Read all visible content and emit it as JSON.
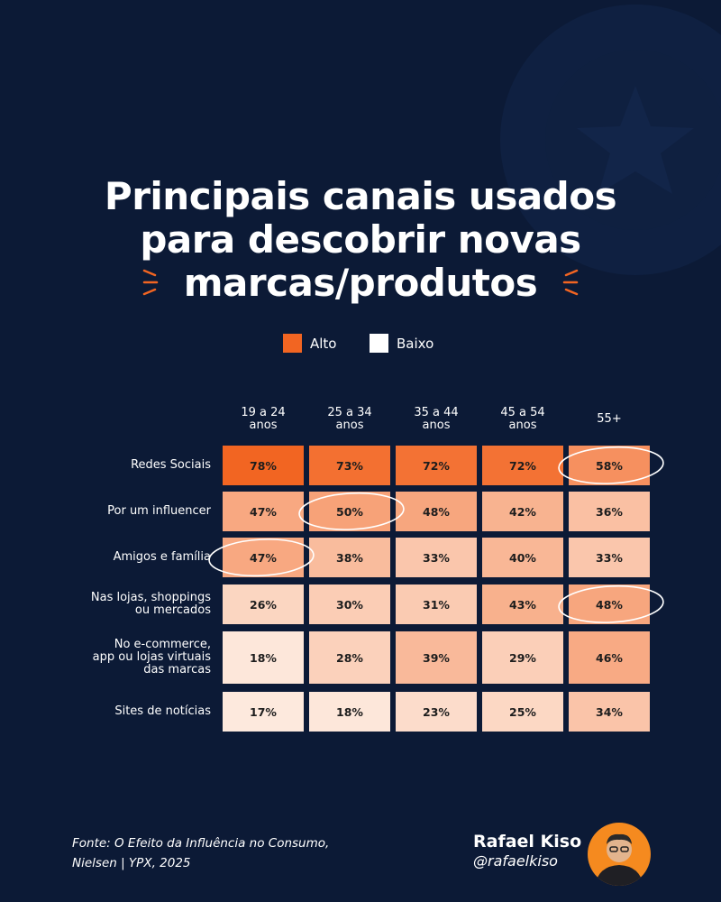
{
  "title": {
    "line1": "Principais canais usados",
    "line2": "para descobrir novas",
    "line3": "marcas/produtos"
  },
  "legend": {
    "high": {
      "label": "Alto",
      "color": "#f26522"
    },
    "low": {
      "label": "Baixo",
      "color": "#ffffff"
    }
  },
  "chart_data": {
    "type": "heatmap",
    "columns": [
      "19 a 24\nanos",
      "25 a 34\nanos",
      "35 a 44\nanos",
      "45 a 54\nanos",
      "55+"
    ],
    "rows": [
      "Redes Sociais",
      "Por um influencer",
      "Amigos e família",
      "Nas lojas, shoppings\nou mercados",
      "No e-commerce,\napp ou lojas virtuais\ndas marcas",
      "Sites de notícias"
    ],
    "values": [
      [
        78,
        73,
        72,
        72,
        58
      ],
      [
        47,
        50,
        48,
        42,
        36
      ],
      [
        47,
        38,
        33,
        40,
        33
      ],
      [
        26,
        30,
        31,
        43,
        48
      ],
      [
        18,
        28,
        39,
        29,
        46
      ],
      [
        17,
        18,
        23,
        25,
        34
      ]
    ],
    "value_suffix": "%",
    "highlighted": [
      [
        0,
        4
      ],
      [
        1,
        1
      ],
      [
        2,
        0
      ],
      [
        3,
        4
      ]
    ],
    "color_scale": {
      "low": "#fde9dd",
      "high": "#f26522"
    }
  },
  "source": {
    "line1": "Fonte: O Efeito da Influência no Consumo,",
    "line2": "Nielsen | YPX, 2025"
  },
  "author": {
    "name": "Rafael Kiso",
    "handle": "@rafaelkiso"
  }
}
